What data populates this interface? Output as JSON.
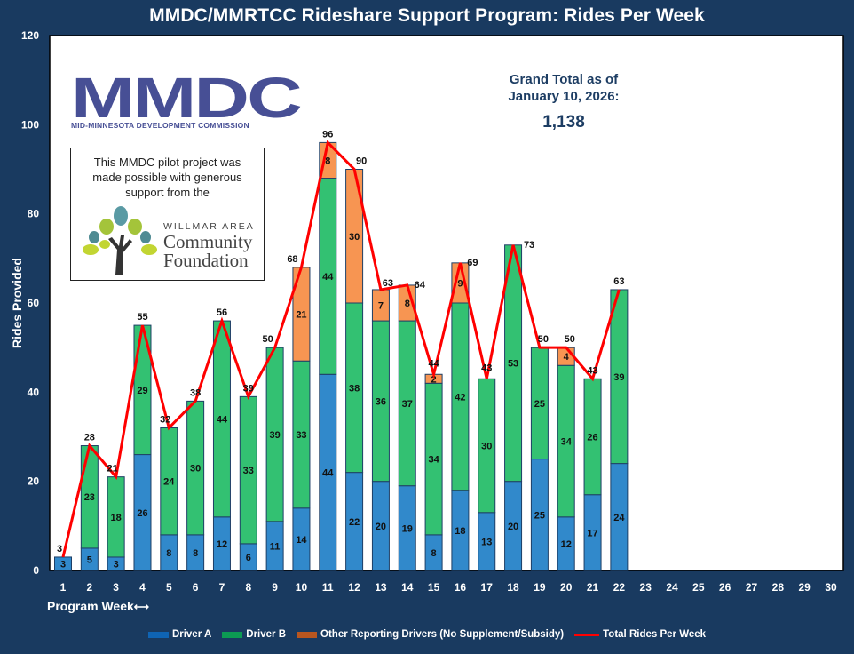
{
  "chart_data": {
    "type": "bar",
    "stacked": true,
    "title": "MMDC/MMRTCC Rideshare Support Program: Rides Per Week",
    "xlabel": "Program Week",
    "ylabel": "Rides Provided",
    "ylim": [
      0,
      120
    ],
    "yticks": [
      0,
      20,
      40,
      60,
      80,
      100,
      120
    ],
    "categories": [
      "1",
      "2",
      "3",
      "4",
      "5",
      "6",
      "7",
      "8",
      "9",
      "10",
      "11",
      "12",
      "13",
      "14",
      "15",
      "16",
      "17",
      "18",
      "19",
      "20",
      "21",
      "22",
      "23",
      "24",
      "25",
      "26",
      "27",
      "28",
      "29",
      "30"
    ],
    "series": [
      {
        "name": "Driver A",
        "color": "#3189cb",
        "values": [
          3,
          5,
          3,
          26,
          8,
          8,
          12,
          6,
          11,
          14,
          44,
          22,
          20,
          19,
          8,
          18,
          13,
          20,
          25,
          12,
          17,
          24,
          null,
          null,
          null,
          null,
          null,
          null,
          null,
          null
        ]
      },
      {
        "name": "Driver B",
        "color": "#33c172",
        "values": [
          null,
          23,
          18,
          29,
          24,
          30,
          44,
          33,
          39,
          33,
          44,
          38,
          36,
          37,
          34,
          42,
          30,
          53,
          25,
          34,
          26,
          39,
          null,
          null,
          null,
          null,
          null,
          null,
          null,
          null
        ]
      },
      {
        "name": "Other Reporting Drivers (No Supplement/Subsidy)",
        "color": "#f79552",
        "values": [
          null,
          null,
          null,
          null,
          null,
          null,
          null,
          null,
          null,
          21,
          8,
          30,
          7,
          8,
          2,
          9,
          null,
          null,
          null,
          4,
          null,
          null,
          null,
          null,
          null,
          null,
          null,
          null,
          null,
          null
        ]
      }
    ],
    "line": {
      "name": "Total Rides Per Week",
      "color": "#ff0000",
      "values": [
        3,
        28,
        21,
        55,
        32,
        38,
        56,
        39,
        50,
        68,
        96,
        90,
        63,
        64,
        44,
        69,
        43,
        73,
        50,
        50,
        43,
        63,
        null,
        null,
        null,
        null,
        null,
        null,
        null,
        null
      ]
    },
    "legend_position": "bottom",
    "legend_colors": {
      "driver_a": "#0f64b4",
      "driver_b": "#0c9a53",
      "other": "#b9561f",
      "total": "#ff0000"
    },
    "grid": false
  },
  "annotations": {
    "grand_total_label_line1": "Grand Total as of",
    "grand_total_label_line2": "January 10, 2026:",
    "grand_total_value": "1,138"
  },
  "logo": {
    "mark": "MMDC",
    "subtitle": "MID-MINNESOTA DEVELOPMENT COMMISSION"
  },
  "sponsor": {
    "text_line1": "This MMDC  pilot project was",
    "text_line2": "made possible with generous",
    "text_line3": "support from the",
    "foundation_small": "WILLMAR AREA",
    "foundation_line1": "Community",
    "foundation_line2": "Foundation"
  },
  "xlabel_arrow": "⟷"
}
